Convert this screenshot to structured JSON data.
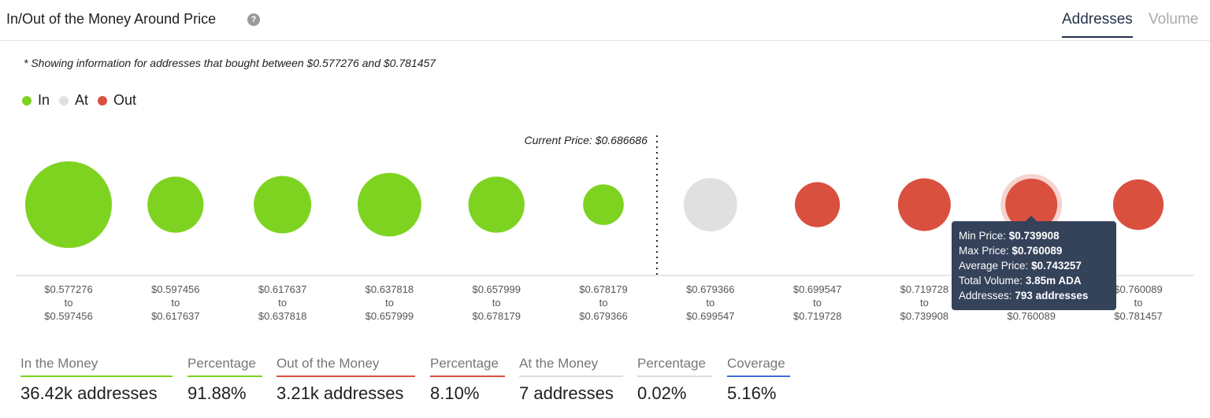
{
  "header": {
    "title": "In/Out of the Money Around Price",
    "help_icon": "question-icon",
    "tabs": [
      {
        "label": "Addresses",
        "active": true
      },
      {
        "label": "Volume",
        "active": false
      }
    ]
  },
  "note": "* Showing information for addresses that bought between $0.577276 and $0.781457",
  "legend": [
    {
      "label": "In",
      "color": "#7ed321"
    },
    {
      "label": "At",
      "color": "#e0e0e0"
    },
    {
      "label": "Out",
      "color": "#d9503f"
    }
  ],
  "chart_data": {
    "type": "scatter",
    "current_price_label": "Current Price: $0.686686",
    "current_price_after_bucket": 6,
    "bins": [
      {
        "min": "$0.577276",
        "max": "$0.597456",
        "status": "in",
        "size": 100
      },
      {
        "min": "$0.597456",
        "max": "$0.617637",
        "status": "in",
        "size": 42
      },
      {
        "min": "$0.617637",
        "max": "$0.637818",
        "status": "in",
        "size": 44
      },
      {
        "min": "$0.637818",
        "max": "$0.657999",
        "status": "in",
        "size": 54
      },
      {
        "min": "$0.657999",
        "max": "$0.678179",
        "status": "in",
        "size": 42
      },
      {
        "min": "$0.678179",
        "max": "$0.679366",
        "status": "in",
        "size": 22
      },
      {
        "min": "$0.679366",
        "max": "$0.699547",
        "status": "at",
        "size": 38
      },
      {
        "min": "$0.699547",
        "max": "$0.719728",
        "status": "out",
        "size": 27
      },
      {
        "min": "$0.719728",
        "max": "$0.739908",
        "status": "out",
        "size": 37
      },
      {
        "min": "$0.739908",
        "max": "$0.760089",
        "status": "out",
        "size": 36,
        "highlighted": true
      },
      {
        "min": "$0.760089",
        "max": "$0.781457",
        "status": "out",
        "size": 34
      }
    ],
    "to_label": "to"
  },
  "tooltip": {
    "min_label": "Min Price:",
    "min_value": "$0.739908",
    "max_label": "Max Price:",
    "max_value": "$0.760089",
    "avg_label": "Average Price:",
    "avg_value": "$0.743257",
    "vol_label": "Total Volume:",
    "vol_value": "3.85m ADA",
    "addr_label": "Addresses:",
    "addr_value": "793 addresses"
  },
  "stats": [
    {
      "label": "In the Money",
      "value": "36.42k addresses",
      "color": "#7ed321"
    },
    {
      "label": "Percentage",
      "value": "91.88%",
      "color": "#7ed321"
    },
    {
      "label": "Out of the Money",
      "value": "3.21k addresses",
      "color": "#d9503f"
    },
    {
      "label": "Percentage",
      "value": "8.10%",
      "color": "#d9503f"
    },
    {
      "label": "At the Money",
      "value": "7 addresses",
      "color": "#dddddd"
    },
    {
      "label": "Percentage",
      "value": "0.02%",
      "color": "#dddddd"
    },
    {
      "label": "Coverage",
      "value": "5.16%",
      "color": "#3a6fd8"
    }
  ]
}
